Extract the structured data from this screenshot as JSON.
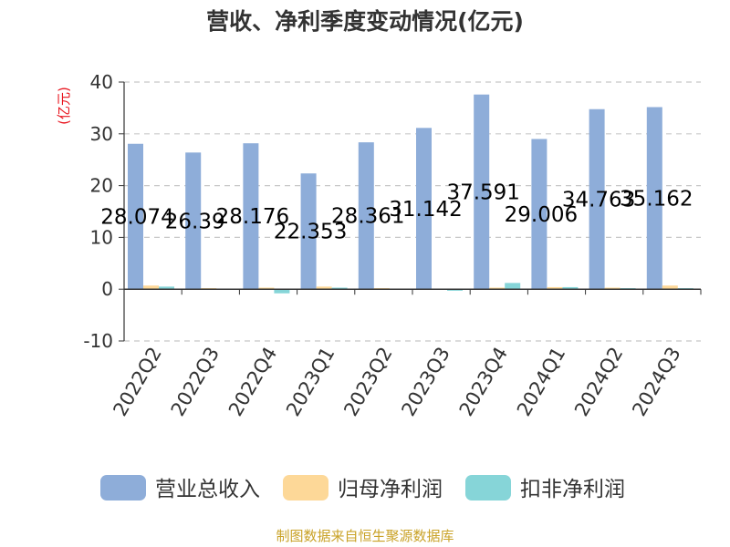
{
  "chart_data": {
    "type": "bar",
    "title": "营收、净利季度变动情况(亿元)",
    "ylabel": "(亿元)",
    "xlabel": "",
    "ylim": [
      -10,
      40
    ],
    "yticks": [
      -10,
      0,
      10,
      20,
      30,
      40
    ],
    "grid": true,
    "legend_position": "bottom",
    "categories": [
      "2022Q2",
      "2022Q3",
      "2022Q4",
      "2023Q1",
      "2023Q2",
      "2023Q3",
      "2023Q4",
      "2024Q1",
      "2024Q2",
      "2024Q3"
    ],
    "series": [
      {
        "name": "营业总收入",
        "color": "#8eadd9",
        "values": [
          28.074,
          26.39,
          28.176,
          22.353,
          28.361,
          31.142,
          37.591,
          29.006,
          34.763,
          35.162
        ]
      },
      {
        "name": "归母净利润",
        "color": "#fdd898",
        "values": [
          0.7,
          0.2,
          0.3,
          0.5,
          0.2,
          0.1,
          0.3,
          0.4,
          0.3,
          0.7
        ]
      },
      {
        "name": "扣非净利润",
        "color": "#86d5d8",
        "values": [
          0.5,
          0.1,
          -0.8,
          0.3,
          0.1,
          -0.3,
          1.2,
          0.4,
          0.2,
          0.2
        ]
      }
    ],
    "data_labels": [
      "28.074",
      "26.39",
      "28.176",
      "22.353",
      "28.361",
      "31.142",
      "37.591",
      "29.006",
      "34.763",
      "35.162"
    ]
  },
  "source_text": "制图数据来自恒生聚源数据库"
}
